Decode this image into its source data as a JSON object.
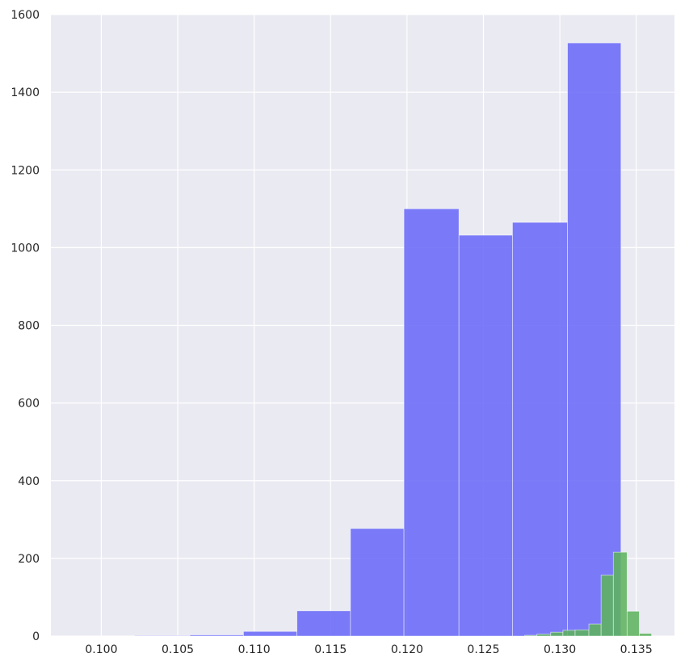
{
  "chart_data": {
    "type": "bar",
    "title": "",
    "xlabel": "",
    "ylabel": "",
    "xlim": [
      0.0967,
      0.1375
    ],
    "ylim": [
      0,
      1600
    ],
    "grid": true,
    "x_ticks": [
      0.1,
      0.105,
      0.11,
      0.115,
      0.12,
      0.125,
      0.13,
      0.135
    ],
    "x_tick_labels": [
      "0.100",
      "0.105",
      "0.110",
      "0.115",
      "0.120",
      "0.125",
      "0.130",
      "0.135"
    ],
    "y_ticks": [
      0,
      200,
      400,
      600,
      800,
      1000,
      1200,
      1400,
      1600
    ],
    "y_tick_labels": [
      "0",
      "200",
      "400",
      "600",
      "800",
      "1000",
      "1200",
      "1400",
      "1600"
    ],
    "series": [
      {
        "color": "#6a6af8",
        "bins": [
          {
            "x0": 0.1022,
            "x1": 0.1058,
            "count": 1
          },
          {
            "x0": 0.1058,
            "x1": 0.1093,
            "count": 3
          },
          {
            "x0": 0.1093,
            "x1": 0.1128,
            "count": 12
          },
          {
            "x0": 0.1128,
            "x1": 0.1163,
            "count": 65
          },
          {
            "x0": 0.1163,
            "x1": 0.1198,
            "count": 277
          },
          {
            "x0": 0.1198,
            "x1": 0.1234,
            "count": 1100
          },
          {
            "x0": 0.1234,
            "x1": 0.1269,
            "count": 1032
          },
          {
            "x0": 0.1269,
            "x1": 0.1305,
            "count": 1065
          },
          {
            "x0": 0.1305,
            "x1": 0.134,
            "count": 1527
          }
        ]
      },
      {
        "color": "#5fb35f",
        "bins": [
          {
            "x0": 0.1277,
            "x1": 0.1285,
            "count": 2
          },
          {
            "x0": 0.1285,
            "x1": 0.1294,
            "count": 5
          },
          {
            "x0": 0.1294,
            "x1": 0.1302,
            "count": 10
          },
          {
            "x0": 0.1302,
            "x1": 0.131,
            "count": 15
          },
          {
            "x0": 0.131,
            "x1": 0.1319,
            "count": 16
          },
          {
            "x0": 0.1319,
            "x1": 0.1327,
            "count": 31
          },
          {
            "x0": 0.1327,
            "x1": 0.1335,
            "count": 157
          },
          {
            "x0": 0.1335,
            "x1": 0.1344,
            "count": 216
          },
          {
            "x0": 0.1344,
            "x1": 0.1352,
            "count": 64
          },
          {
            "x0": 0.1352,
            "x1": 0.136,
            "count": 7
          }
        ]
      }
    ]
  }
}
